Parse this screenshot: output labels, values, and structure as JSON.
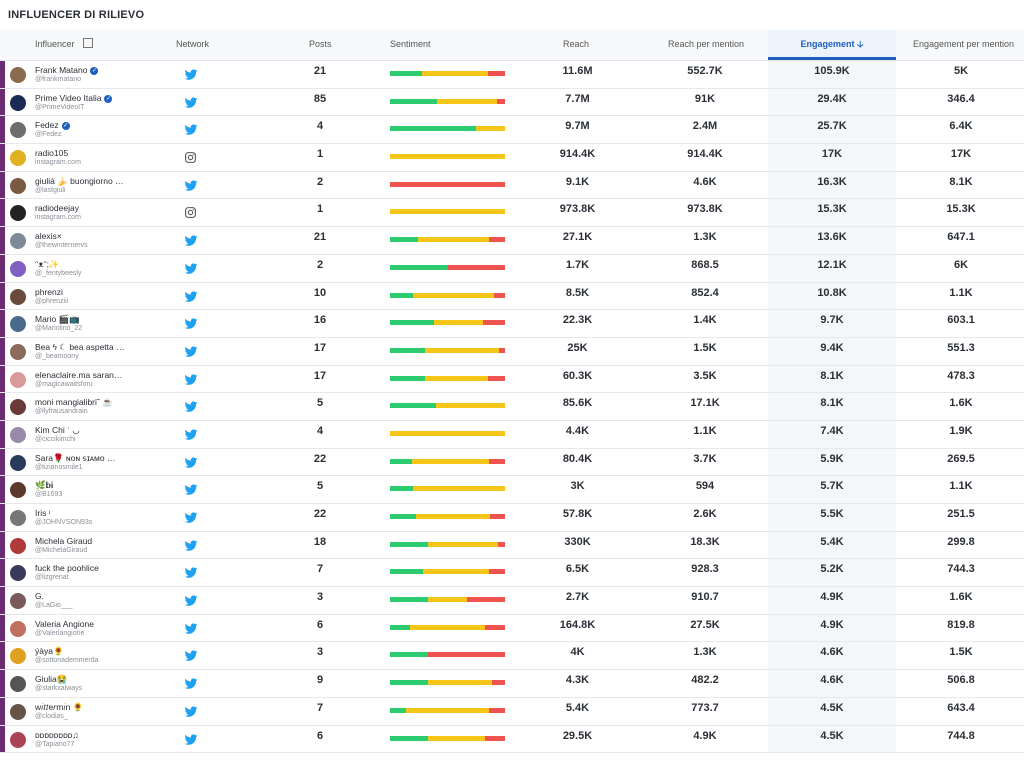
{
  "title": "INFLUENCER DI RILIEVO",
  "headers": {
    "influencer": "Influencer",
    "network": "Network",
    "posts": "Posts",
    "sentiment": "Sentiment",
    "reach": "Reach",
    "reach_per_mention": "Reach per mention",
    "engagement": "Engagement",
    "engagement_per_mention": "Engagement per mention"
  },
  "rows": [
    {
      "name": "Frank Matano",
      "verified": true,
      "handle": "@frankmatano",
      "network": "twitter",
      "posts": "21",
      "sentiment": [
        0.28,
        0.57,
        0.15
      ],
      "reach": "11.6M",
      "rpm": "552.7K",
      "eng": "105.9K",
      "epm": "5K"
    },
    {
      "name": "Prime Video Italia",
      "verified": true,
      "handle": "@PrimeVideoIT",
      "network": "twitter",
      "posts": "85",
      "sentiment": [
        0.41,
        0.52,
        0.07
      ],
      "reach": "7.7M",
      "rpm": "91K",
      "eng": "29.4K",
      "epm": "346.4"
    },
    {
      "name": "Fedez",
      "verified": true,
      "handle": "@Fedez",
      "network": "twitter",
      "posts": "4",
      "sentiment": [
        0.75,
        0.25,
        0.0
      ],
      "reach": "9.7M",
      "rpm": "2.4M",
      "eng": "25.7K",
      "epm": "6.4K"
    },
    {
      "name": "radio105",
      "verified": false,
      "handle": "instagram.com",
      "network": "instagram",
      "posts": "1",
      "sentiment": [
        0.0,
        1.0,
        0.0
      ],
      "reach": "914.4K",
      "rpm": "914.4K",
      "eng": "17K",
      "epm": "17K"
    },
    {
      "name": "giuliá 🍌 buongiorno …",
      "verified": false,
      "handle": "@lastgiuli",
      "network": "twitter",
      "posts": "2",
      "sentiment": [
        0.0,
        0.0,
        1.0
      ],
      "reach": "9.1K",
      "rpm": "4.6K",
      "eng": "16.3K",
      "epm": "8.1K"
    },
    {
      "name": "radiodeejay",
      "verified": false,
      "handle": "instagram.com",
      "network": "instagram",
      "posts": "1",
      "sentiment": [
        0.0,
        1.0,
        0.0
      ],
      "reach": "973.8K",
      "rpm": "973.8K",
      "eng": "15.3K",
      "epm": "15.3K"
    },
    {
      "name": "alexis×",
      "verified": false,
      "handle": "@thewinternervs",
      "network": "twitter",
      "posts": "21",
      "sentiment": [
        0.24,
        0.62,
        0.14
      ],
      "reach": "27.1K",
      "rpm": "1.3K",
      "eng": "13.6K",
      "epm": "647.1"
    },
    {
      "name": "ᵔᴥᵔ;✨",
      "verified": false,
      "handle": "@_fentybeesly",
      "network": "twitter",
      "posts": "2",
      "sentiment": [
        0.5,
        0.0,
        0.5
      ],
      "reach": "1.7K",
      "rpm": "868.5",
      "eng": "12.1K",
      "epm": "6K"
    },
    {
      "name": "phrenzi",
      "verified": false,
      "handle": "@phrenziii",
      "network": "twitter",
      "posts": "10",
      "sentiment": [
        0.2,
        0.7,
        0.1
      ],
      "reach": "8.5K",
      "rpm": "852.4",
      "eng": "10.8K",
      "epm": "1.1K"
    },
    {
      "name": "Mario 🎬📺",
      "verified": false,
      "handle": "@Mariolino_22",
      "network": "twitter",
      "posts": "16",
      "sentiment": [
        0.38,
        0.43,
        0.19
      ],
      "reach": "22.3K",
      "rpm": "1.4K",
      "eng": "9.7K",
      "epm": "603.1"
    },
    {
      "name": "Bea ϟ ☾ bea aspetta …",
      "verified": false,
      "handle": "@_beamoony",
      "network": "twitter",
      "posts": "17",
      "sentiment": [
        0.3,
        0.65,
        0.05
      ],
      "reach": "25K",
      "rpm": "1.5K",
      "eng": "9.4K",
      "epm": "551.3"
    },
    {
      "name": "elenaclaire.ma saran…",
      "verified": false,
      "handle": "@magicawaitsforu",
      "network": "twitter",
      "posts": "17",
      "sentiment": [
        0.3,
        0.55,
        0.15
      ],
      "reach": "60.3K",
      "rpm": "3.5K",
      "eng": "8.1K",
      "epm": "478.3"
    },
    {
      "name": "moni mangialibri˜ ☕",
      "verified": false,
      "handle": "@llyfrausandrain",
      "network": "twitter",
      "posts": "5",
      "sentiment": [
        0.4,
        0.6,
        0.0
      ],
      "reach": "85.6K",
      "rpm": "17.1K",
      "eng": "8.1K",
      "epm": "1.6K"
    },
    {
      "name": "Kim Chi ʾ ◡",
      "verified": false,
      "handle": "@ciccikimchi",
      "network": "twitter",
      "posts": "4",
      "sentiment": [
        0.0,
        1.0,
        0.0
      ],
      "reach": "4.4K",
      "rpm": "1.1K",
      "eng": "7.4K",
      "epm": "1.9K"
    },
    {
      "name": "Sara🌹 ɴᴏɴ ꜱɪᴀᴍᴏ …",
      "verified": false,
      "handle": "@tizianosmile1",
      "network": "twitter",
      "posts": "22",
      "sentiment": [
        0.19,
        0.67,
        0.14
      ],
      "reach": "80.4K",
      "rpm": "3.7K",
      "eng": "5.9K",
      "epm": "269.5"
    },
    {
      "name": "🌿𝐛𝐢",
      "verified": false,
      "handle": "@B1693",
      "network": "twitter",
      "posts": "5",
      "sentiment": [
        0.2,
        0.8,
        0.0
      ],
      "reach": "3K",
      "rpm": "594",
      "eng": "5.7K",
      "epm": "1.1K"
    },
    {
      "name": "Iris ᵎ",
      "verified": false,
      "handle": "@JOHNVSON93s",
      "network": "twitter",
      "posts": "22",
      "sentiment": [
        0.23,
        0.64,
        0.13
      ],
      "reach": "57.8K",
      "rpm": "2.6K",
      "eng": "5.5K",
      "epm": "251.5"
    },
    {
      "name": "Michela Giraud",
      "verified": false,
      "handle": "@MichelaGiraud",
      "network": "twitter",
      "posts": "18",
      "sentiment": [
        0.33,
        0.61,
        0.06
      ],
      "reach": "330K",
      "rpm": "18.3K",
      "eng": "5.4K",
      "epm": "299.8"
    },
    {
      "name": "fuck the poohlice",
      "verified": false,
      "handle": "@lizgrenat",
      "network": "twitter",
      "posts": "7",
      "sentiment": [
        0.29,
        0.57,
        0.14
      ],
      "reach": "6.5K",
      "rpm": "928.3",
      "eng": "5.2K",
      "epm": "744.3"
    },
    {
      "name": "G.",
      "verified": false,
      "handle": "@LaGio___",
      "network": "twitter",
      "posts": "3",
      "sentiment": [
        0.33,
        0.34,
        0.33
      ],
      "reach": "2.7K",
      "rpm": "910.7",
      "eng": "4.9K",
      "epm": "1.6K"
    },
    {
      "name": "Valeria Angione",
      "verified": false,
      "handle": "@Valeriangione",
      "network": "twitter",
      "posts": "6",
      "sentiment": [
        0.17,
        0.66,
        0.17
      ],
      "reach": "164.8K",
      "rpm": "27.5K",
      "eng": "4.9K",
      "epm": "819.8"
    },
    {
      "name": "ýàya🌻",
      "verified": false,
      "handle": "@sottonademmerda",
      "network": "twitter",
      "posts": "3",
      "sentiment": [
        0.33,
        0.0,
        0.67
      ],
      "reach": "4K",
      "rpm": "1.3K",
      "eng": "4.6K",
      "epm": "1.5K"
    },
    {
      "name": "Giulia😭",
      "verified": false,
      "handle": "@starkxalways",
      "network": "twitter",
      "posts": "9",
      "sentiment": [
        0.33,
        0.56,
        0.11
      ],
      "reach": "4.3K",
      "rpm": "482.2",
      "eng": "4.6K",
      "epm": "506.8"
    },
    {
      "name": "w𝑖𝑡𝑡e𝑟m𝑖n 🌻",
      "verified": false,
      "handle": "@clodias_",
      "network": "twitter",
      "posts": "7",
      "sentiment": [
        0.14,
        0.72,
        0.14
      ],
      "reach": "5.4K",
      "rpm": "773.7",
      "eng": "4.5K",
      "epm": "643.4"
    },
    {
      "name": "ᴅᴅᴅᴅᴅᴅᴅᴅ♫",
      "verified": false,
      "handle": "@Tapiano77",
      "network": "twitter",
      "posts": "6",
      "sentiment": [
        0.33,
        0.5,
        0.17
      ],
      "reach": "29.5K",
      "rpm": "4.9K",
      "eng": "4.5K",
      "epm": "744.8"
    }
  ],
  "colors": {
    "positive": "#2ecc71",
    "neutral": "#f5c518",
    "negative": "#ef5350",
    "accent": "#1f5fbf",
    "row_marker": "#6b2c73"
  }
}
